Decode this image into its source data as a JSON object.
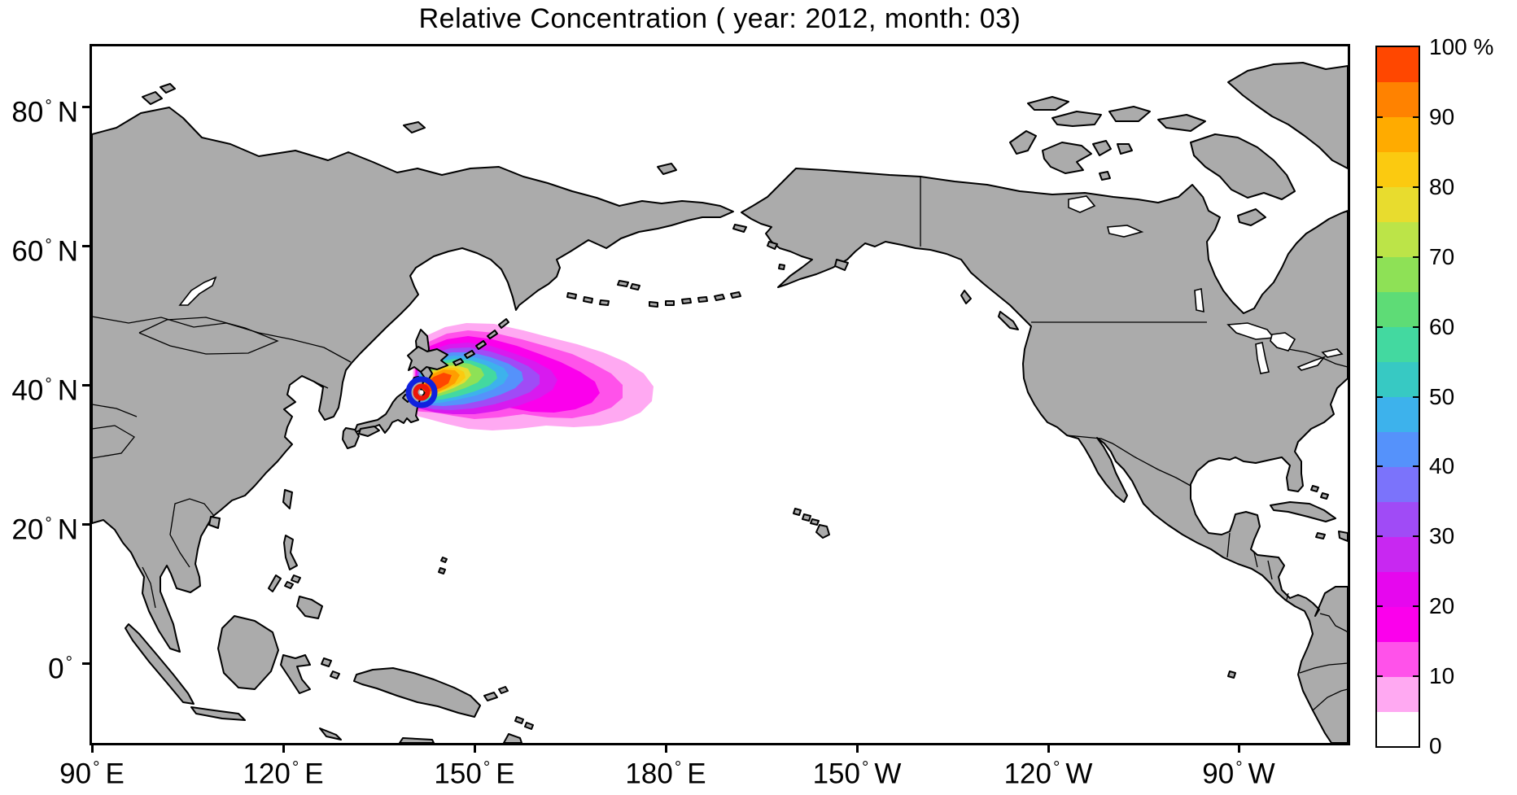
{
  "figure": {
    "title": "Relative Concentration ( year: 2012, month: 03)"
  },
  "x_axis": {
    "ticks": [
      {
        "num": "90",
        "hem": "E"
      },
      {
        "num": "120",
        "hem": "E"
      },
      {
        "num": "150",
        "hem": "E"
      },
      {
        "num": "180",
        "hem": "E"
      },
      {
        "num": "150",
        "hem": "W"
      },
      {
        "num": "120",
        "hem": "W"
      },
      {
        "num": "90",
        "hem": "W"
      }
    ]
  },
  "y_axis": {
    "ticks": [
      {
        "num": "80",
        "hem": "N"
      },
      {
        "num": "60",
        "hem": "N"
      },
      {
        "num": "40",
        "hem": "N"
      },
      {
        "num": "20",
        "hem": "N"
      },
      {
        "num": "0",
        "hem": ""
      }
    ]
  },
  "colorbar": {
    "labels_bottom_to_top": [
      "0",
      "10",
      "20",
      "30",
      "40",
      "50",
      "60",
      "70",
      "80",
      "90",
      "100 %"
    ],
    "cell_colors_bottom_to_top": [
      "#FFFFFF",
      "#FFA9F2",
      "#FF52EA",
      "#FB00EC",
      "#E607EE",
      "#C828F1",
      "#A04BF6",
      "#7B73FB",
      "#5592FB",
      "#3DB2EC",
      "#37C9C3",
      "#43D9A0",
      "#5EDC76",
      "#8EE156",
      "#BCE448",
      "#E8DC2E",
      "#FBCA10",
      "#FFAB00",
      "#FF8200",
      "#FF4700"
    ]
  },
  "map": {
    "land_color": "#ABABAB",
    "ocean_color": "#FFFFFF",
    "coastline_color": "#000000"
  },
  "source_marker": {
    "outer_ring_color": "#1021DE",
    "inner_ring_color": "#EE1509"
  },
  "chart_data": {
    "type": "heatmap",
    "title": "Relative Concentration ( year: 2012, month: 03)",
    "x_tick_labels": [
      "90° E",
      "120° E",
      "150° E",
      "180° E",
      "150° W",
      "120° W",
      "90° W"
    ],
    "y_tick_labels": [
      "80° N",
      "60° N",
      "40° N",
      "20° N",
      "0°"
    ],
    "map_extent": {
      "lon_east_deg": [
        90,
        287
      ],
      "lat_deg": [
        -11,
        88
      ]
    },
    "colorbar": {
      "units": "%",
      "range": [
        0,
        100
      ],
      "tick_step": 10,
      "n_cells": 20,
      "legend_position": "right"
    },
    "plume": {
      "source_lon_deg": 141,
      "source_lat_deg": 37.5,
      "extent_lon_deg": [
        140,
        176
      ],
      "extent_lat_deg": [
        33,
        47
      ],
      "gradient": "concentration falls from >95% at the Japanese coast source to <10% at the eastern pink fringe near 176E",
      "contour_levels_pct": [
        5,
        10,
        15,
        20,
        25,
        30,
        35,
        40,
        45,
        50,
        55,
        60,
        65,
        70,
        75,
        80,
        85,
        90,
        95,
        100
      ]
    }
  }
}
